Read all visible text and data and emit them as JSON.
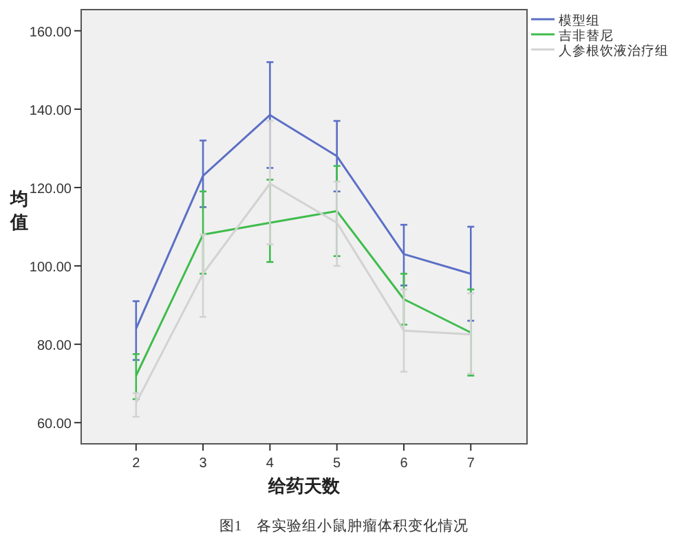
{
  "chart_data": {
    "type": "line",
    "xlabel": "给药天数",
    "ylabel": "均值",
    "annotations": [
      "图1　各实验组小鼠肿瘤体积变化情况"
    ],
    "x": [
      2,
      3,
      4,
      5,
      6,
      7
    ],
    "xlim": [
      1.18,
      7.84
    ],
    "xticks": [
      2,
      3,
      4,
      5,
      6,
      7
    ],
    "ylim": [
      54.6,
      165.4
    ],
    "yticks": [
      {
        "value": 60,
        "label": "60.00"
      },
      {
        "value": 80,
        "label": "80.00"
      },
      {
        "value": 100,
        "label": "100.00"
      },
      {
        "value": 120,
        "label": "120.00"
      },
      {
        "value": 140,
        "label": "140.00"
      },
      {
        "value": 160,
        "label": "160.00"
      }
    ],
    "grid": false,
    "legend": "top right",
    "marker": "none",
    "line_style": "solid",
    "series": [
      {
        "name": "模型组",
        "color": "#5b6fc6",
        "values": [
          84,
          123,
          138.5,
          128,
          103,
          98
        ],
        "errors": [
          [
            76,
            91
          ],
          [
            115,
            132
          ],
          [
            125,
            152
          ],
          [
            119,
            137
          ],
          [
            95,
            110.5
          ],
          [
            86,
            110
          ]
        ]
      },
      {
        "name": "吉非替尼",
        "color": "#3fbc4c",
        "values": [
          72,
          108,
          111,
          114,
          91.5,
          83
        ],
        "errors": [
          [
            66,
            77.5
          ],
          [
            98,
            119
          ],
          [
            101,
            122
          ],
          [
            102.5,
            125.5
          ],
          [
            85,
            98
          ],
          [
            72,
            94
          ]
        ]
      },
      {
        "name": "人参根饮液治疗组",
        "color": "#d2d2d2",
        "values": [
          65,
          98,
          121,
          111,
          83.5,
          82.5
        ],
        "errors": [
          [
            61.5,
            67.5
          ],
          [
            87,
            108
          ],
          [
            105.5,
            137
          ],
          [
            100,
            121.5
          ],
          [
            73,
            94
          ],
          [
            72.5,
            93
          ]
        ]
      }
    ]
  }
}
